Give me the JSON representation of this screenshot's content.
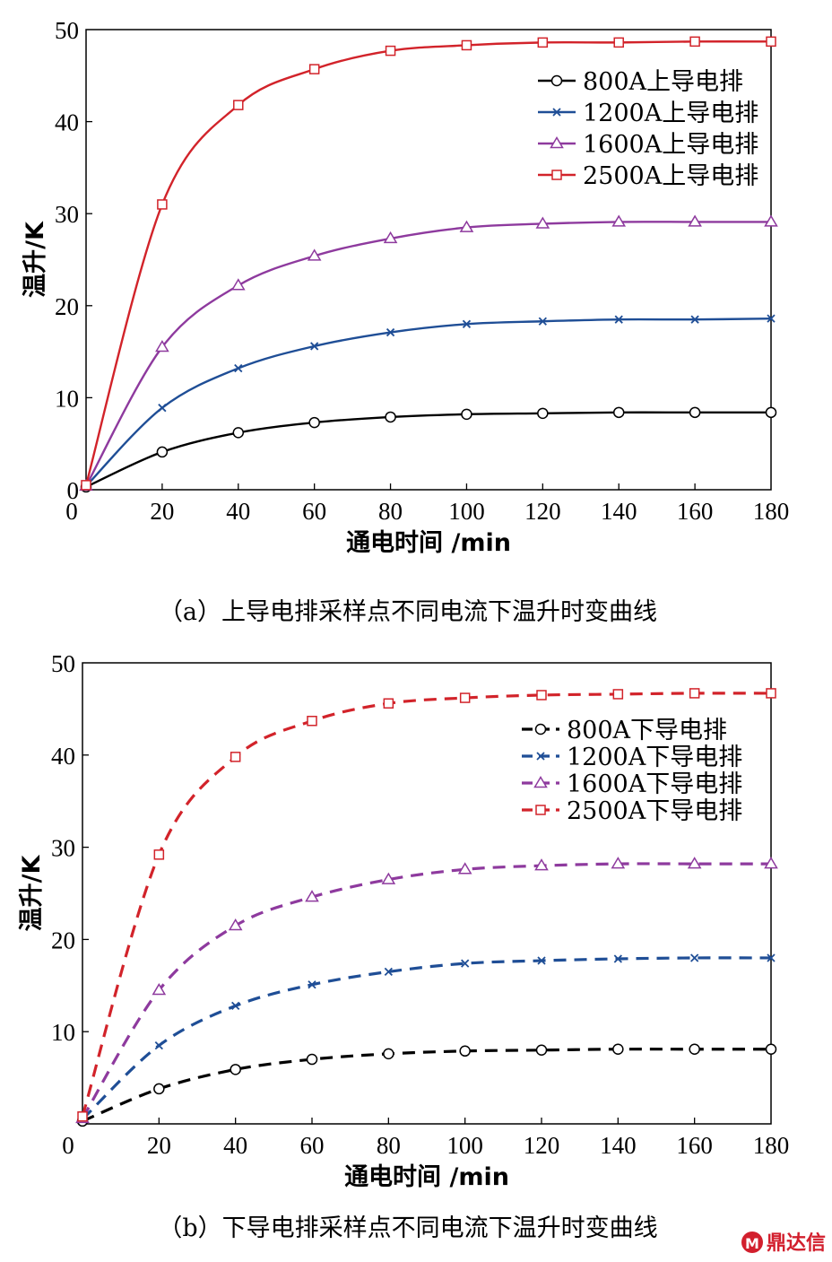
{
  "chart_data": [
    {
      "type": "line",
      "caption": "（a）上导电排采样点不同电流下温升时变曲线",
      "xlabel": "通电时间 /min",
      "ylabel": "温升/K",
      "xlim": [
        0,
        180
      ],
      "ylim": [
        0,
        50
      ],
      "x_ticks": [
        "0",
        "20",
        "40",
        "60",
        "80",
        "100",
        "120",
        "140",
        "160",
        "180"
      ],
      "y_ticks": [
        "0",
        "10",
        "20",
        "30",
        "40",
        "50"
      ],
      "grid": false,
      "legend_position": "top-right",
      "line_style": "solid",
      "x": [
        0,
        20,
        40,
        60,
        80,
        100,
        120,
        140,
        160,
        180
      ],
      "series": [
        {
          "name": "800A上导电排",
          "color": "#000000",
          "marker": "circle",
          "values": [
            0.3,
            4.1,
            6.2,
            7.3,
            7.9,
            8.2,
            8.3,
            8.4,
            8.4,
            8.4
          ]
        },
        {
          "name": "1200A上导电排",
          "color": "#1f4e96",
          "marker": "x",
          "values": [
            0.4,
            8.9,
            13.2,
            15.6,
            17.1,
            18.0,
            18.3,
            18.5,
            18.5,
            18.6
          ]
        },
        {
          "name": "1600A上导电排",
          "color": "#8e3a9e",
          "marker": "triangle",
          "values": [
            0.4,
            15.5,
            22.2,
            25.4,
            27.3,
            28.5,
            28.9,
            29.1,
            29.1,
            29.1
          ]
        },
        {
          "name": "2500A上导电排",
          "color": "#d2232a",
          "marker": "square",
          "values": [
            0.5,
            31.0,
            41.8,
            45.7,
            47.7,
            48.3,
            48.6,
            48.6,
            48.7,
            48.7
          ]
        }
      ]
    },
    {
      "type": "line",
      "caption": "（b）下导电排采样点不同电流下温升时变曲线",
      "xlabel": "通电时间 /min",
      "ylabel": "温升/K",
      "xlim": [
        0,
        180
      ],
      "ylim": [
        0,
        50
      ],
      "x_ticks": [
        "0",
        "20",
        "40",
        "60",
        "80",
        "100",
        "120",
        "140",
        "160",
        "180"
      ],
      "y_ticks": [
        "10",
        "20",
        "30",
        "40",
        "50"
      ],
      "grid": false,
      "legend_position": "top-right",
      "line_style": "dashed",
      "x": [
        0,
        20,
        40,
        60,
        80,
        100,
        120,
        140,
        160,
        180
      ],
      "series": [
        {
          "name": "800A下导电排",
          "color": "#000000",
          "marker": "circle",
          "values": [
            0.3,
            3.8,
            5.9,
            7.0,
            7.6,
            7.9,
            8.0,
            8.1,
            8.1,
            8.1
          ]
        },
        {
          "name": "1200A下导电排",
          "color": "#1f4e96",
          "marker": "x",
          "values": [
            0.5,
            8.5,
            12.8,
            15.1,
            16.5,
            17.4,
            17.7,
            17.9,
            18.0,
            18.0
          ]
        },
        {
          "name": "1600A下导电排",
          "color": "#8e3a9e",
          "marker": "triangle",
          "values": [
            0.6,
            14.5,
            21.5,
            24.6,
            26.5,
            27.6,
            28.0,
            28.2,
            28.2,
            28.2
          ]
        },
        {
          "name": "2500A下导电排",
          "color": "#d2232a",
          "marker": "square",
          "values": [
            0.8,
            29.2,
            39.8,
            43.7,
            45.6,
            46.2,
            46.5,
            46.6,
            46.7,
            46.7
          ]
        }
      ]
    }
  ],
  "watermark": {
    "text": "鼎达信",
    "color": "#d21f2d"
  }
}
